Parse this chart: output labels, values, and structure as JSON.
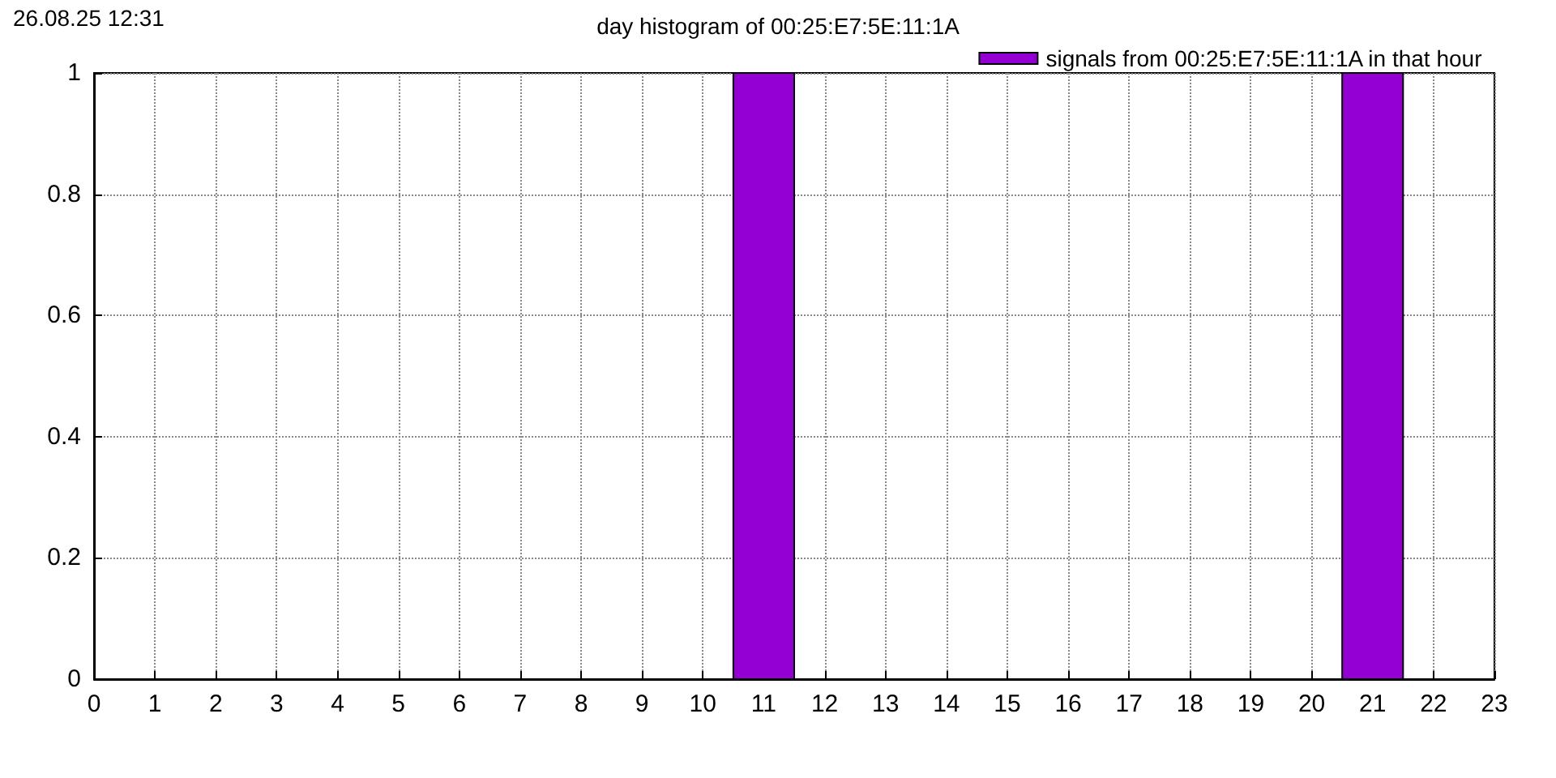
{
  "chart_data": {
    "type": "histogram",
    "title": "day histogram of 00:25:E7:5E:11:1A",
    "annotations": [
      "26.08.25 12:31"
    ],
    "series": [
      {
        "name": "signals from 00:25:E7:5E:11:1A in that hour",
        "color": "#9400d3",
        "values": [
          0,
          0,
          0,
          0,
          0,
          0,
          0,
          0,
          0,
          0,
          1,
          0,
          0,
          0,
          0,
          0,
          0,
          0,
          0,
          0,
          1,
          0
        ]
      }
    ],
    "bins": [
      0.5,
      1.5,
      2.5,
      3.5,
      4.5,
      5.5,
      6.5,
      7.5,
      8.5,
      9.5,
      10.5,
      11.5,
      12.5,
      13.5,
      14.5,
      15.5,
      16.5,
      17.5,
      18.5,
      19.5,
      20.5,
      21.5,
      22.5
    ],
    "xlim": [
      0,
      23
    ],
    "xticks": [
      0,
      1,
      2,
      3,
      4,
      5,
      6,
      7,
      8,
      9,
      10,
      11,
      12,
      13,
      14,
      15,
      16,
      17,
      18,
      19,
      20,
      21,
      22,
      23
    ],
    "ylim": [
      0,
      1
    ],
    "yticks": [
      0,
      0.2,
      0.4,
      0.6,
      0.8,
      1
    ],
    "grid": true,
    "legend": "top right"
  }
}
